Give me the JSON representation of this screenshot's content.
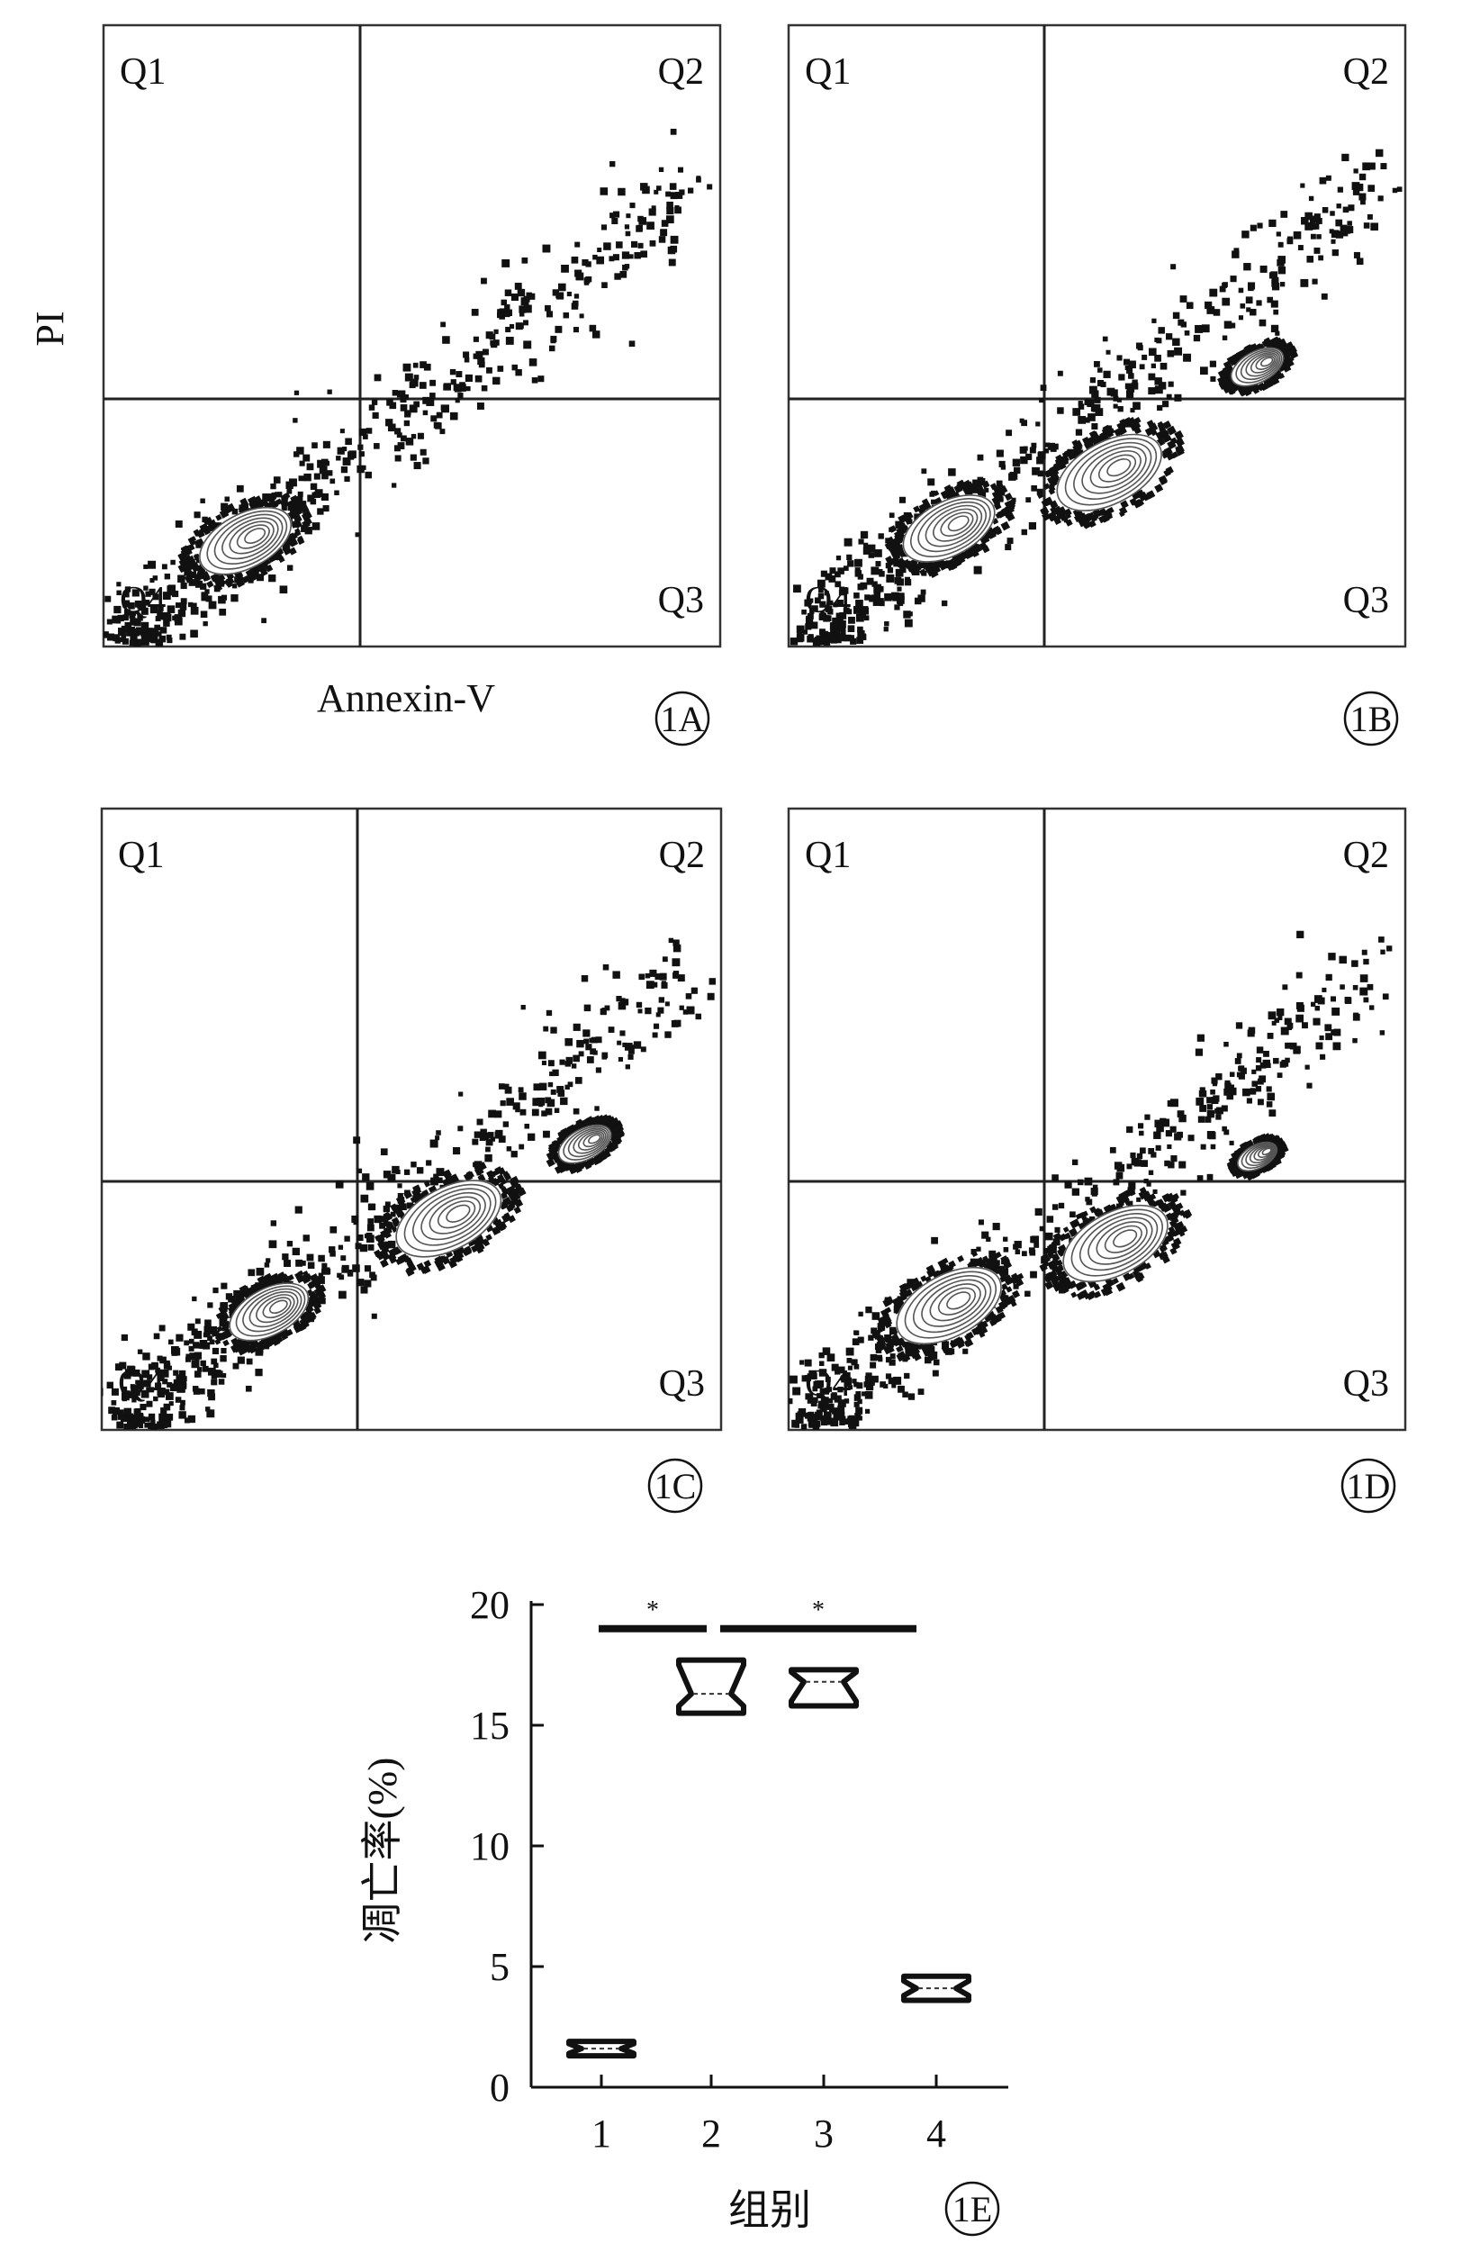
{
  "axis_labels": {
    "flow_x": "Annexin-V",
    "flow_y": "PI"
  },
  "panel_tags": [
    "1A",
    "1B",
    "1C",
    "1D",
    "1E"
  ],
  "quadrant_labels": [
    "Q1",
    "Q2",
    "Q3",
    "Q4"
  ],
  "flow_panels": [
    {
      "tag": "1A",
      "description_points": "Cells concentrated in Q4 (live); sparse diagonal tail into Q2",
      "populations": [
        {
          "name": "",
          "annexin": 0.23,
          "pi": 0.17,
          "spread": 0.07
        }
      ]
    },
    {
      "tag": "1B",
      "populations": [
        {
          "name": "",
          "annexin": 0.26,
          "pi": 0.19,
          "spread": 0.07
        },
        {
          "name": "",
          "annexin": 0.52,
          "pi": 0.28,
          "spread": 0.08
        },
        {
          "name": "",
          "annexin": 0.76,
          "pi": 0.45,
          "spread": 0.04
        }
      ]
    },
    {
      "tag": "1C",
      "populations": [
        {
          "name": "",
          "annexin": 0.27,
          "pi": 0.19,
          "spread": 0.06
        },
        {
          "name": "",
          "annexin": 0.56,
          "pi": 0.34,
          "spread": 0.08
        },
        {
          "name": "",
          "annexin": 0.78,
          "pi": 0.46,
          "spread": 0.04
        }
      ]
    },
    {
      "tag": "1D",
      "populations": [
        {
          "name": "",
          "annexin": 0.26,
          "pi": 0.2,
          "spread": 0.08
        },
        {
          "name": "",
          "annexin": 0.53,
          "pi": 0.3,
          "spread": 0.08
        },
        {
          "name": "",
          "annexin": 0.76,
          "pi": 0.44,
          "spread": 0.03
        }
      ]
    }
  ],
  "chart_data": {
    "type": "box",
    "title": "",
    "xlabel": "组别",
    "ylabel": "凋亡率(%)",
    "categories": [
      "1",
      "2",
      "3",
      "4"
    ],
    "ylim": [
      0,
      20
    ],
    "yticks": [
      0,
      5,
      10,
      15,
      20
    ],
    "boxes": [
      {
        "category": "1",
        "min": 1.3,
        "q1": 1.4,
        "median": 1.6,
        "q3": 1.8,
        "max": 1.9
      },
      {
        "category": "2",
        "min": 15.5,
        "q1": 15.8,
        "median": 16.3,
        "q3": 17.5,
        "max": 17.7
      },
      {
        "category": "3",
        "min": 15.8,
        "q1": 16.0,
        "median": 16.8,
        "q3": 17.2,
        "max": 17.3
      },
      {
        "category": "4",
        "min": 3.6,
        "q1": 3.8,
        "median": 4.1,
        "q3": 4.4,
        "max": 4.6
      }
    ],
    "significance": [
      {
        "from": "1",
        "to": "2",
        "label": "*",
        "y": 19.0
      },
      {
        "from": "2",
        "to": "4",
        "label": "*",
        "y": 19.0
      }
    ]
  }
}
